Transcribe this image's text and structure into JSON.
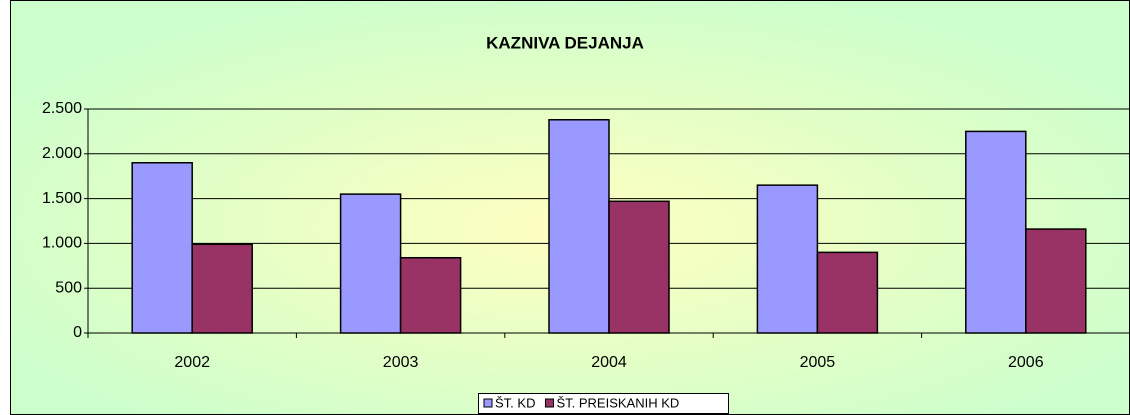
{
  "chart_data": {
    "type": "bar",
    "title": "KAZNIVA DEJANJA",
    "categories": [
      "2002",
      "2003",
      "2004",
      "2005",
      "2006"
    ],
    "series": [
      {
        "name": "ŠT. KD",
        "color": "#9999ff",
        "values": [
          1900,
          1550,
          2380,
          1650,
          2250
        ]
      },
      {
        "name": "ŠT. PREISKANIH KD",
        "color": "#993366",
        "values": [
          990,
          840,
          1470,
          900,
          1160
        ]
      }
    ],
    "ylim": [
      0,
      2500
    ],
    "yticks": [
      0,
      500,
      {
        "value": 1000,
        "label": "1.000"
      },
      {
        "value": 1500,
        "label": "1.500"
      },
      {
        "value": 2000,
        "label": "2.000"
      },
      {
        "value": 2500,
        "label": "2.500"
      }
    ],
    "grid": true,
    "legend": "bottom"
  }
}
